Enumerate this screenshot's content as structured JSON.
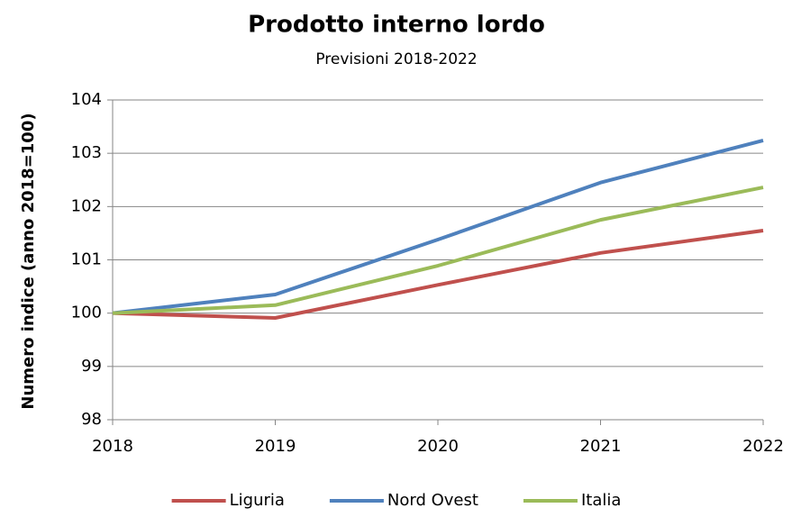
{
  "chart_data": {
    "type": "line",
    "title": "Prodotto interno lordo",
    "subtitle": "Previsioni 2018-2022",
    "y_label": "Numero indice (anno 2018=100)",
    "x": [
      2018,
      2019,
      2020,
      2021,
      2022
    ],
    "xlim": [
      2018,
      2022
    ],
    "xticks": [
      2018,
      2019,
      2020,
      2021,
      2022
    ],
    "ylim": [
      98,
      104
    ],
    "yticks": [
      98,
      99,
      100,
      101,
      102,
      103,
      104
    ],
    "grid": true,
    "legend": "bottom",
    "series": [
      {
        "name": "Liguria",
        "color": "#c0504d",
        "values": [
          100,
          99.91,
          100.53,
          101.13,
          101.55
        ]
      },
      {
        "name": "Nord Ovest",
        "color": "#4f81bd",
        "values": [
          100,
          100.35,
          101.38,
          102.45,
          103.24
        ]
      },
      {
        "name": "Italia",
        "color": "#9bbb59",
        "values": [
          100,
          100.15,
          100.89,
          101.75,
          102.36
        ]
      }
    ]
  }
}
